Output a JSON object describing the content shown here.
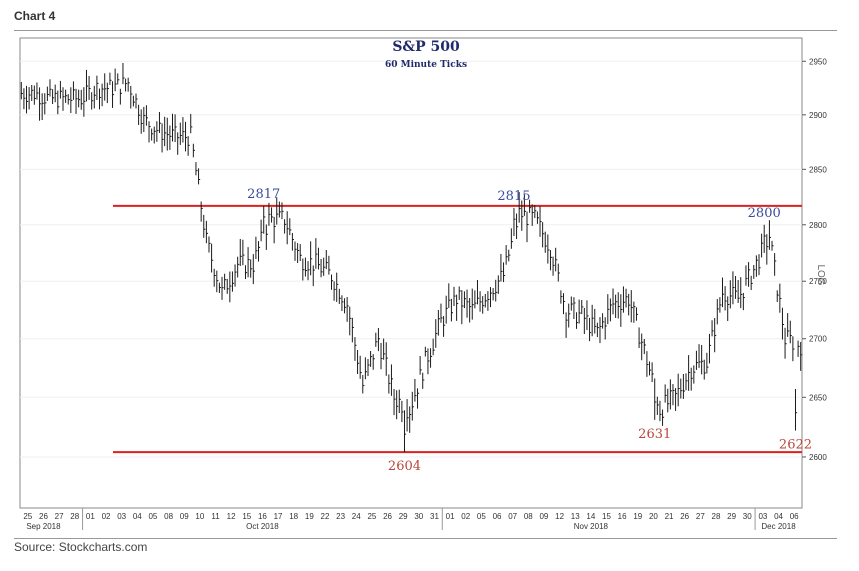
{
  "header": {
    "label": "Chart 4"
  },
  "footer": {
    "source": "Source: Stockcharts.com"
  },
  "colors": {
    "blue_text": "#3b4a9e",
    "red_text": "#b8463a",
    "red_line": "#dd1f1f",
    "bars": "#1a1a1a"
  },
  "chart_data": {
    "type": "bar",
    "subtype": "ohlc-price-bars",
    "title": "S&P 500",
    "subtitle": "60 Minute Ticks",
    "y_axis": {
      "position": "right",
      "side_label": "LOG",
      "scale": "log",
      "ylim": [
        2558,
        2972
      ],
      "ticks": [
        2600,
        2650,
        2700,
        2750,
        2800,
        2850,
        2900,
        2950
      ]
    },
    "x_axis": {
      "days": [
        "25",
        "26",
        "27",
        "28",
        "01",
        "02",
        "03",
        "04",
        "05",
        "08",
        "09",
        "10",
        "11",
        "12",
        "15",
        "16",
        "17",
        "18",
        "19",
        "22",
        "23",
        "24",
        "25",
        "26",
        "29",
        "30",
        "31",
        "01",
        "02",
        "05",
        "06",
        "07",
        "08",
        "09",
        "12",
        "13",
        "14",
        "15",
        "16",
        "19",
        "20",
        "21",
        "26",
        "27",
        "28",
        "29",
        "30",
        "03",
        "04",
        "06"
      ],
      "months": [
        {
          "label": "Sep 2018",
          "day": "26"
        },
        {
          "label": "Oct 2018",
          "day": "16"
        },
        {
          "label": "Nov 2018",
          "day": "14"
        },
        {
          "label": "Dec 2018",
          "day": "04"
        }
      ]
    },
    "horizontal_lines": [
      {
        "value": 2817,
        "color": "#dd1f1f"
      },
      {
        "value": 2604,
        "color": "#dd1f1f"
      }
    ],
    "annotations": [
      {
        "text": "2817",
        "value": 2817,
        "date": "16 Oct 2018",
        "color": "blue",
        "position": "above"
      },
      {
        "text": "2815",
        "value": 2815,
        "date": "07 Nov 2018",
        "color": "blue",
        "position": "above"
      },
      {
        "text": "2800",
        "value": 2800,
        "date": "03 Dec 2018",
        "color": "blue",
        "position": "above"
      },
      {
        "text": "2604",
        "value": 2604,
        "date": "29 Oct 2018",
        "color": "red",
        "position": "below"
      },
      {
        "text": "2631",
        "value": 2631,
        "date": "20 Nov 2018",
        "color": "red",
        "position": "below"
      },
      {
        "text": "2622",
        "value": 2622,
        "date": "06 Dec 2018",
        "color": "red",
        "position": "below"
      }
    ],
    "path_closes": [
      {
        "date": "25 Sep 2018",
        "close": 2920
      },
      {
        "date": "26 Sep 2018",
        "close": 2915
      },
      {
        "date": "27 Sep 2018",
        "close": 2915
      },
      {
        "date": "28 Sep 2018",
        "close": 2915
      },
      {
        "date": "01 Oct 2018",
        "close": 2925
      },
      {
        "date": "02 Oct 2018",
        "close": 2925
      },
      {
        "date": "03 Oct 2018",
        "close": 2930
      },
      {
        "date": "04 Oct 2018",
        "close": 2895
      },
      {
        "date": "05 Oct 2018",
        "close": 2885
      },
      {
        "date": "08 Oct 2018",
        "close": 2880
      },
      {
        "date": "09 Oct 2018",
        "close": 2880
      },
      {
        "date": "10 Oct 2018",
        "close": 2785
      },
      {
        "date": "11 Oct 2018",
        "close": 2740
      },
      {
        "date": "12 Oct 2018",
        "close": 2765
      },
      {
        "date": "15 Oct 2018",
        "close": 2765
      },
      {
        "date": "16 Oct 2018",
        "close": 2805
      },
      {
        "date": "17 Oct 2018",
        "close": 2805
      },
      {
        "date": "18 Oct 2018",
        "close": 2770
      },
      {
        "date": "19 Oct 2018",
        "close": 2765
      },
      {
        "date": "22 Oct 2018",
        "close": 2755
      },
      {
        "date": "23 Oct 2018",
        "close": 2730
      },
      {
        "date": "24 Oct 2018",
        "close": 2660
      },
      {
        "date": "25 Oct 2018",
        "close": 2700
      },
      {
        "date": "26 Oct 2018",
        "close": 2650
      },
      {
        "date": "29 Oct 2018",
        "close": 2640
      },
      {
        "date": "30 Oct 2018",
        "close": 2680
      },
      {
        "date": "31 Oct 2018",
        "close": 2715
      },
      {
        "date": "01 Nov 2018",
        "close": 2735
      },
      {
        "date": "02 Nov 2018",
        "close": 2725
      },
      {
        "date": "05 Nov 2018",
        "close": 2740
      },
      {
        "date": "06 Nov 2018",
        "close": 2755
      },
      {
        "date": "07 Nov 2018",
        "close": 2810
      },
      {
        "date": "08 Nov 2018",
        "close": 2805
      },
      {
        "date": "09 Nov 2018",
        "close": 2780
      },
      {
        "date": "12 Nov 2018",
        "close": 2725
      },
      {
        "date": "13 Nov 2018",
        "close": 2720
      },
      {
        "date": "14 Nov 2018",
        "close": 2705
      },
      {
        "date": "15 Nov 2018",
        "close": 2730
      },
      {
        "date": "16 Nov 2018",
        "close": 2735
      },
      {
        "date": "19 Nov 2018",
        "close": 2690
      },
      {
        "date": "20 Nov 2018",
        "close": 2640
      },
      {
        "date": "21 Nov 2018",
        "close": 2650
      },
      {
        "date": "26 Nov 2018",
        "close": 2675
      },
      {
        "date": "27 Nov 2018",
        "close": 2680
      },
      {
        "date": "28 Nov 2018",
        "close": 2740
      },
      {
        "date": "29 Nov 2018",
        "close": 2735
      },
      {
        "date": "30 Nov 2018",
        "close": 2760
      },
      {
        "date": "03 Dec 2018",
        "close": 2790
      },
      {
        "date": "04 Dec 2018",
        "close": 2700
      },
      {
        "date": "06 Dec 2018",
        "close": 2695
      }
    ]
  }
}
